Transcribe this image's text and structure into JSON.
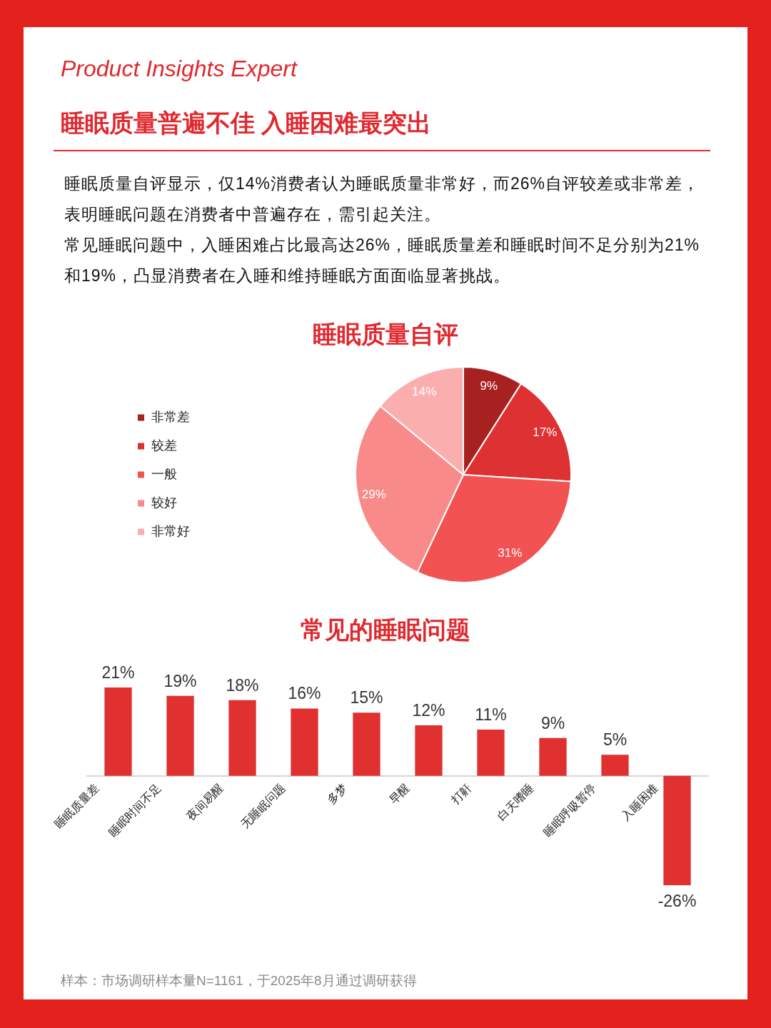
{
  "chart_data": [
    {
      "type": "other",
      "subtitle": "Product Insights Expert",
      "title": "睡眠质量普遍不佳 入睡困难最突出",
      "annotations": [
        "睡眠质量自评显示，仅14%消费者认为睡眠质量非常好，而26%自评较差或非常差，表明睡眠问题在消费者中普遍存在，需引起关注。",
        "常见睡眠问题中，入睡困难占比最高达26%，睡眠质量差和睡眠时间不足分别为21%和19%，凸显消费者在入睡和维持睡眠方面面临显著挑战。"
      ]
    },
    {
      "type": "pie",
      "title": "睡眠质量自评",
      "categories": [
        "非常差",
        "较差",
        "一般",
        "较好",
        "非常好"
      ],
      "values": [
        9,
        17,
        31,
        29,
        14
      ],
      "colors": [
        "#a82121",
        "#de3131",
        "#f25252",
        "#f98a8a",
        "#fbaeae"
      ],
      "value_labels": [
        "9%",
        "17%",
        "31%",
        "29%",
        "14%"
      ],
      "legend": "left"
    },
    {
      "type": "bar",
      "title": "常见的睡眠问题",
      "categories": [
        "睡眠质量差",
        "睡眠时间不足",
        "夜间易醒",
        "无睡眠问题",
        "多梦",
        "早醒",
        "打鼾",
        "白天嗜睡",
        "睡眠呼吸暂停",
        "入睡困难"
      ],
      "values": [
        21,
        19,
        18,
        16,
        15,
        12,
        11,
        9,
        5,
        -26
      ],
      "color": "#e03030",
      "value_labels": [
        "21%",
        "19%",
        "18%",
        "16%",
        "15%",
        "12%",
        "11%",
        "9%",
        "5%",
        "-26%"
      ],
      "annotations": [
        "样本：市场调研样本量N=1161，于2025年8月通过调研获得"
      ]
    }
  ]
}
